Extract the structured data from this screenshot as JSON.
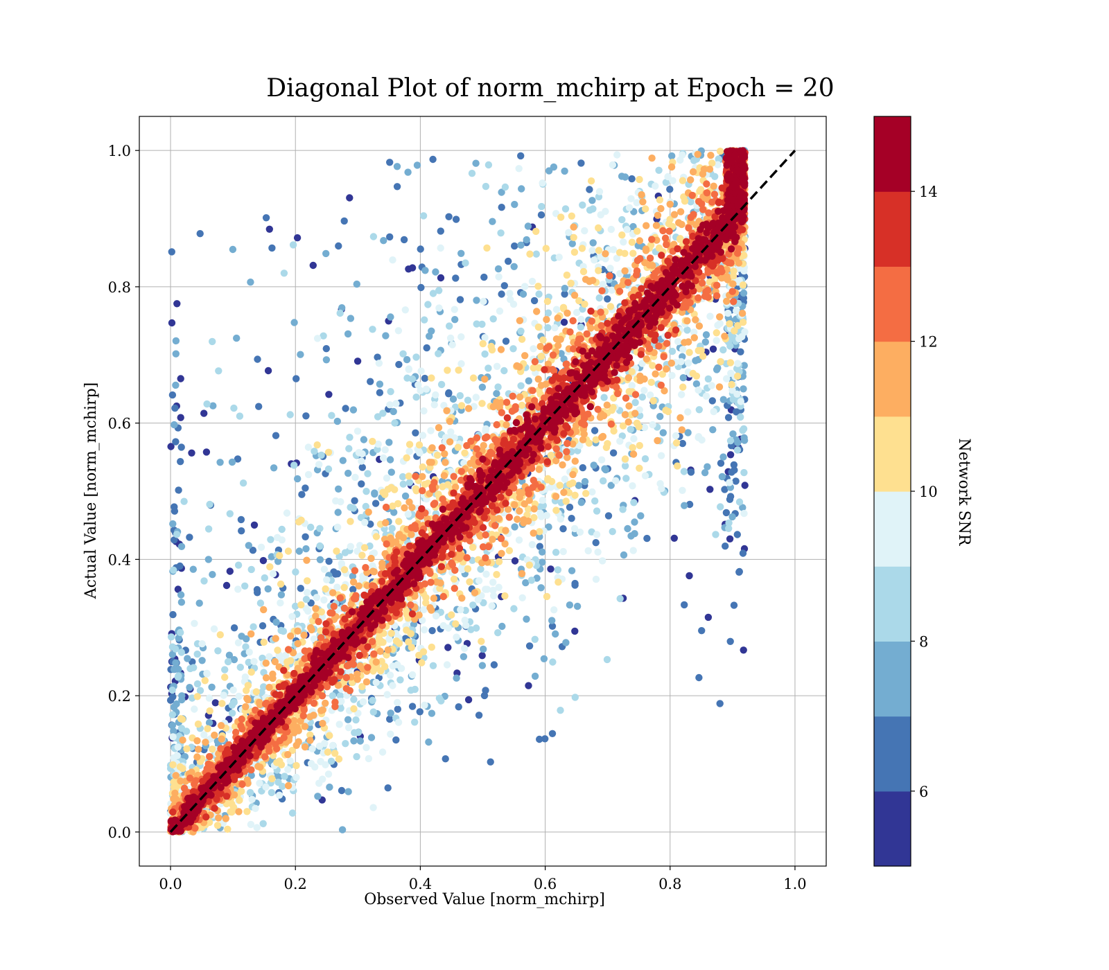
{
  "chart_data": {
    "type": "scatter",
    "title": "Diagonal Plot of norm_mchirp at Epoch = 20",
    "xlabel": "Observed Value [norm_mchirp]",
    "ylabel": "Actual Value [norm_mchirp]",
    "xlim": [
      -0.05,
      1.05
    ],
    "ylim": [
      -0.05,
      1.05
    ],
    "xticks": [
      "0.0",
      "0.2",
      "0.4",
      "0.6",
      "0.8",
      "1.0"
    ],
    "yticks": [
      "0.0",
      "0.2",
      "0.4",
      "0.6",
      "0.8",
      "1.0"
    ],
    "grid": true,
    "reference_line": {
      "from": [
        0,
        0
      ],
      "to": [
        1,
        1
      ],
      "style": "dashed",
      "color": "#000000"
    },
    "colorbar": {
      "label": "Network SNR",
      "range": [
        5,
        15
      ],
      "ticks": [
        "6",
        "8",
        "10",
        "12",
        "14"
      ],
      "colors": [
        "#313695",
        "#4575b4",
        "#74add1",
        "#abd9e9",
        "#e0f3f8",
        "#fee090",
        "#fdae61",
        "#f46d43",
        "#d73027",
        "#a50026"
      ]
    },
    "point_cloud": {
      "description_of_density": "dense high-SNR points along diagonal, low-SNR points scattered widely",
      "approx_point_count": 9000,
      "x_range": [
        0.0,
        0.92
      ],
      "y_range": [
        0.0,
        1.0
      ]
    }
  }
}
